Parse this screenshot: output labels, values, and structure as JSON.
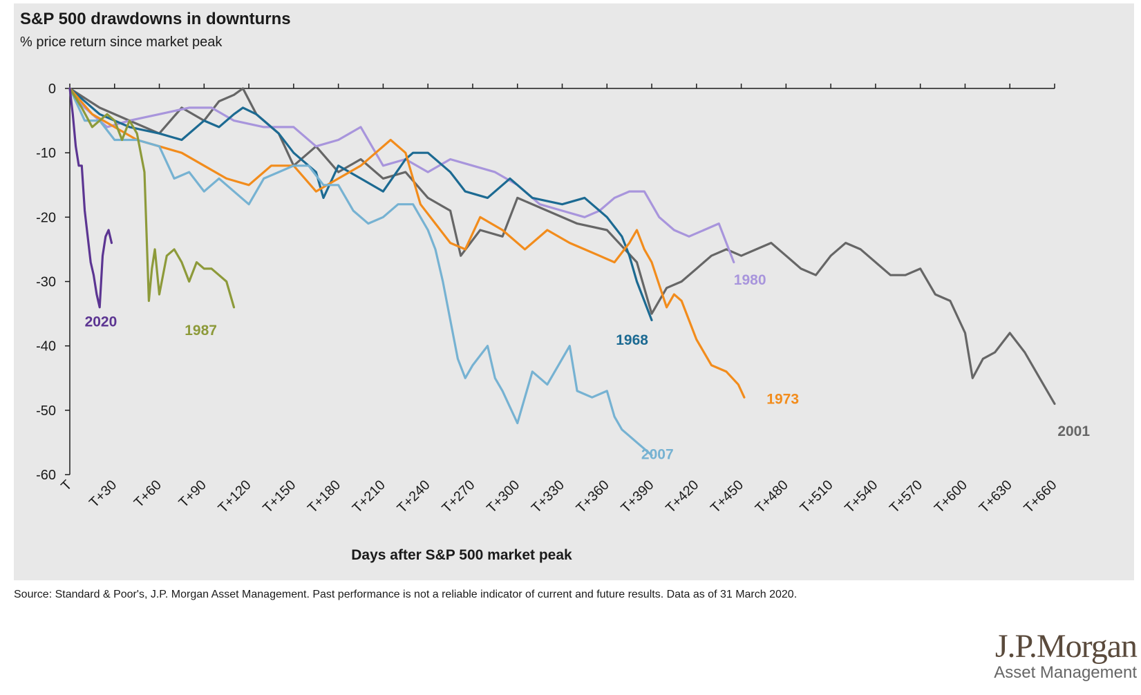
{
  "chart_data": {
    "type": "line",
    "title": "S&P 500 drawdowns in downturns",
    "subtitle": "% price return since market peak",
    "xlabel": "Days after S&P 500 market peak",
    "ylabel": "",
    "xlim": [
      0,
      660
    ],
    "ylim": [
      -60,
      0
    ],
    "x_ticks": [
      0,
      30,
      60,
      90,
      120,
      150,
      180,
      210,
      240,
      270,
      300,
      330,
      360,
      390,
      420,
      450,
      480,
      510,
      540,
      570,
      600,
      630,
      660
    ],
    "x_tick_labels": [
      "T",
      "T+30",
      "T+60",
      "T+90",
      "T+120",
      "T+150",
      "T+180",
      "T+210",
      "T+240",
      "T+270",
      "T+300",
      "T+330",
      "T+360",
      "T+390",
      "T+420",
      "T+450",
      "T+480",
      "T+510",
      "T+540",
      "T+570",
      "T+600",
      "T+630",
      "T+660"
    ],
    "y_ticks": [
      0,
      -10,
      -20,
      -30,
      -40,
      -50,
      -60
    ],
    "y_tick_labels": [
      "0",
      "-10",
      "-20",
      "-30",
      "-40",
      "-50",
      "-60"
    ],
    "grid": false,
    "legend": "direct labels",
    "series": [
      {
        "name": "2001",
        "color": "#666666",
        "x": [
          0,
          20,
          40,
          60,
          75,
          90,
          100,
          110,
          116,
          125,
          140,
          150,
          165,
          180,
          195,
          210,
          225,
          240,
          255,
          262,
          275,
          290,
          300,
          320,
          340,
          360,
          380,
          390,
          400,
          410,
          420,
          430,
          440,
          450,
          460,
          470,
          480,
          490,
          500,
          510,
          520,
          530,
          540,
          550,
          560,
          570,
          580,
          590,
          600,
          605,
          612,
          620,
          630,
          640,
          650,
          660
        ],
        "y": [
          0,
          -3,
          -5,
          -7,
          -3,
          -5,
          -2,
          -1,
          0,
          -4,
          -7,
          -12,
          -9,
          -13,
          -11,
          -14,
          -13,
          -17,
          -19,
          -26,
          -22,
          -23,
          -17,
          -19,
          -21,
          -22,
          -27,
          -35,
          -31,
          -30,
          -28,
          -26,
          -25,
          -26,
          -25,
          -24,
          -26,
          -28,
          -29,
          -26,
          -24,
          -25,
          -27,
          -29,
          -29,
          -28,
          -32,
          -33,
          -38,
          -45,
          -42,
          -41,
          -38,
          -41,
          -45,
          -49
        ]
      },
      {
        "name": "1980",
        "color": "#a895dc",
        "x": [
          0,
          10,
          25,
          40,
          60,
          80,
          95,
          110,
          130,
          150,
          165,
          180,
          195,
          210,
          225,
          240,
          255,
          270,
          285,
          300,
          315,
          330,
          345,
          355,
          365,
          375,
          385,
          395,
          405,
          415,
          425,
          435,
          445
        ],
        "y": [
          0,
          -3,
          -6,
          -5,
          -4,
          -3,
          -3,
          -5,
          -6,
          -6,
          -9,
          -8,
          -6,
          -12,
          -11,
          -13,
          -11,
          -12,
          -13,
          -15,
          -18,
          -19,
          -20,
          -19,
          -17,
          -16,
          -16,
          -20,
          -22,
          -23,
          -22,
          -21,
          -27
        ]
      },
      {
        "name": "1968",
        "color": "#1c6a92",
        "x": [
          0,
          20,
          40,
          60,
          75,
          90,
          100,
          110,
          116,
          125,
          140,
          150,
          165,
          170,
          180,
          195,
          210,
          225,
          230,
          240,
          255,
          265,
          280,
          295,
          310,
          330,
          345,
          360,
          370,
          375,
          380,
          385,
          390
        ],
        "y": [
          0,
          -4,
          -6,
          -7,
          -8,
          -5,
          -6,
          -4,
          -3,
          -4,
          -7,
          -10,
          -13,
          -17,
          -12,
          -14,
          -16,
          -11,
          -10,
          -10,
          -13,
          -16,
          -17,
          -14,
          -17,
          -18,
          -17,
          -20,
          -23,
          -26,
          -30,
          -33,
          -36
        ]
      },
      {
        "name": "1973",
        "color": "#f28c1c",
        "x": [
          0,
          15,
          30,
          45,
          60,
          75,
          90,
          105,
          120,
          135,
          150,
          165,
          180,
          195,
          205,
          215,
          225,
          235,
          245,
          255,
          265,
          275,
          290,
          305,
          320,
          335,
          345,
          355,
          365,
          375,
          380,
          385,
          390,
          400,
          405,
          410,
          420,
          430,
          440,
          448,
          452
        ],
        "y": [
          0,
          -4,
          -6,
          -8,
          -9,
          -10,
          -12,
          -14,
          -15,
          -12,
          -12,
          -16,
          -14,
          -12,
          -10,
          -8,
          -10,
          -18,
          -21,
          -24,
          -25,
          -20,
          -22,
          -25,
          -22,
          -24,
          -25,
          -26,
          -27,
          -24,
          -22,
          -25,
          -27,
          -34,
          -32,
          -33,
          -39,
          -43,
          -44,
          -46,
          -48
        ]
      },
      {
        "name": "2007",
        "color": "#76b2d2",
        "x": [
          0,
          10,
          20,
          30,
          45,
          60,
          70,
          80,
          90,
          100,
          110,
          120,
          130,
          140,
          150,
          160,
          170,
          180,
          190,
          200,
          210,
          220,
          230,
          240,
          245,
          250,
          255,
          260,
          265,
          270,
          280,
          285,
          290,
          300,
          305,
          310,
          320,
          330,
          335,
          340,
          350,
          360,
          365,
          370,
          375,
          380,
          385,
          390
        ],
        "y": [
          0,
          -5,
          -5,
          -8,
          -8,
          -9,
          -14,
          -13,
          -16,
          -14,
          -16,
          -18,
          -14,
          -13,
          -12,
          -12,
          -15,
          -15,
          -19,
          -21,
          -20,
          -18,
          -18,
          -22,
          -25,
          -30,
          -36,
          -42,
          -45,
          -43,
          -40,
          -45,
          -47,
          -52,
          -48,
          -44,
          -46,
          -42,
          -40,
          -47,
          -48,
          -47,
          -51,
          -53,
          -54,
          -55,
          -56,
          -57
        ]
      },
      {
        "name": "1987",
        "color": "#8d9a3a",
        "x": [
          0,
          8,
          15,
          20,
          25,
          30,
          35,
          40,
          45,
          50,
          53,
          55,
          57,
          60,
          65,
          70,
          75,
          80,
          85,
          90,
          95,
          100,
          105,
          110
        ],
        "y": [
          0,
          -3,
          -6,
          -5,
          -4,
          -5,
          -8,
          -5,
          -7,
          -13,
          -33,
          -28,
          -25,
          -32,
          -26,
          -25,
          -27,
          -30,
          -27,
          -28,
          -28,
          -29,
          -30,
          -34
        ]
      },
      {
        "name": "2020",
        "color": "#5c3592",
        "x": [
          0,
          2,
          4,
          6,
          8,
          10,
          12,
          14,
          16,
          18,
          20,
          22,
          24,
          26,
          28
        ],
        "y": [
          0,
          -4,
          -9,
          -12,
          -12,
          -19,
          -23,
          -27,
          -29,
          -32,
          -34,
          -26,
          -23,
          -22,
          -24
        ]
      }
    ],
    "source": "Source: Standard & Poor's, J.P. Morgan Asset Management. Past performance is not a reliable indicator of current and future results. Data as of 31 March 2020."
  },
  "brand": {
    "name": "J.P.Morgan",
    "sub": "Asset Management",
    "color": "#5a4a3c"
  }
}
